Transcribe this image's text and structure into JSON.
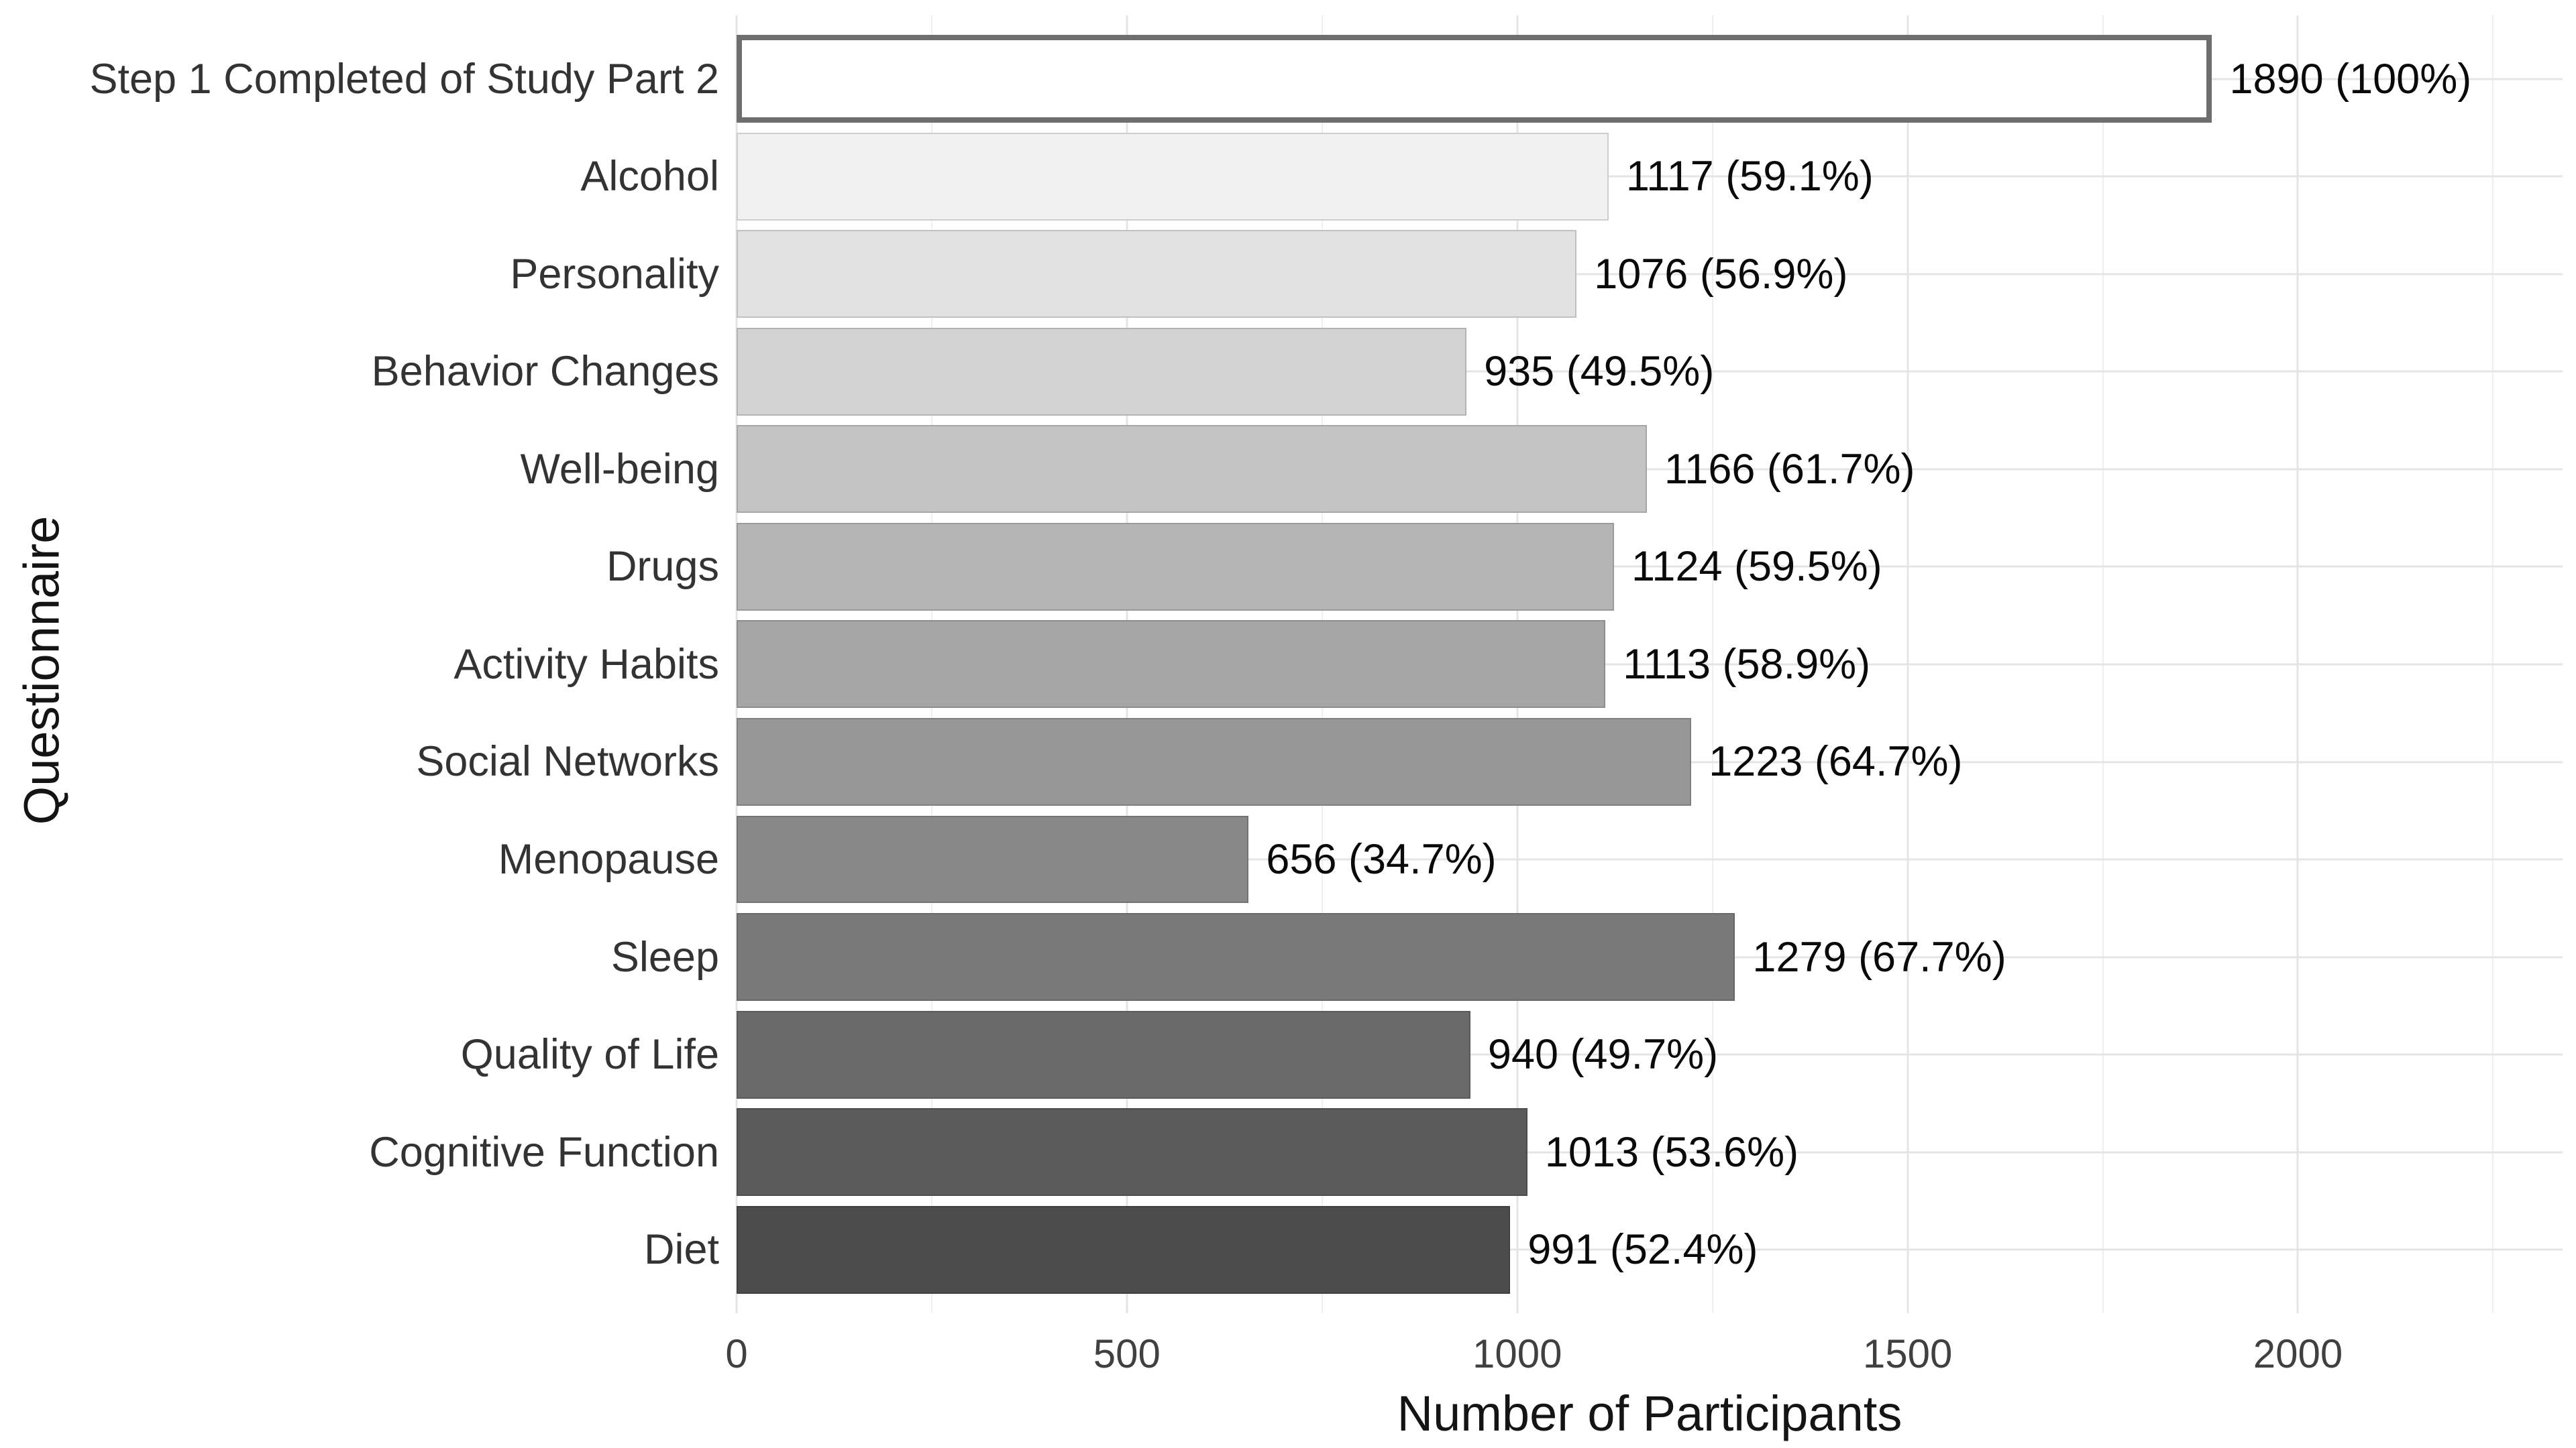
{
  "chart_data": {
    "type": "bar",
    "orientation": "horizontal",
    "xlabel": "Number of Participants",
    "ylabel": "Questionnaire",
    "xlim": [
      0,
      2339
    ],
    "x_major_ticks": [
      0,
      500,
      1000,
      1500,
      2000
    ],
    "x_minor_ticks": [
      250,
      750,
      1250,
      1750,
      2250
    ],
    "grid": "major and minor vertical, major horizontal per category",
    "categories": [
      "Step 1 Completed of Study Part 2",
      "Alcohol",
      "Personality",
      "Behavior Changes",
      "Well-being",
      "Drugs",
      "Activity Habits",
      "Social Networks",
      "Menopause",
      "Sleep",
      "Quality of Life",
      "Cognitive Function",
      "Diet"
    ],
    "values": [
      1890,
      1117,
      1076,
      935,
      1166,
      1124,
      1113,
      1223,
      656,
      1279,
      940,
      1013,
      991
    ],
    "value_labels": [
      "1890 (100%)",
      "1117 (59.1%)",
      "1076 (56.9%)",
      "935 (49.5%)",
      "1166 (61.7%)",
      "1124 (59.5%)",
      "1113 (58.9%)",
      "1223 (64.7%)",
      "656 (34.7%)",
      "1279 (67.7%)",
      "940 (49.7%)",
      "1013 (53.6%)",
      "991 (52.4%)"
    ],
    "bar_fills": [
      "#FFFFFF",
      "#F1F1F1",
      "#E2E2E2",
      "#D3D3D3",
      "#C4C4C4",
      "#B5B5B5",
      "#A6A6A6",
      "#979797",
      "#888888",
      "#797979",
      "#6A6A6A",
      "#5B5B5B",
      "#4C4C4C"
    ],
    "first_bar_border_color": "#6E6E6E",
    "gridline_major_color": "#E4E4E4",
    "gridline_minor_color": "#EFEFEF"
  }
}
